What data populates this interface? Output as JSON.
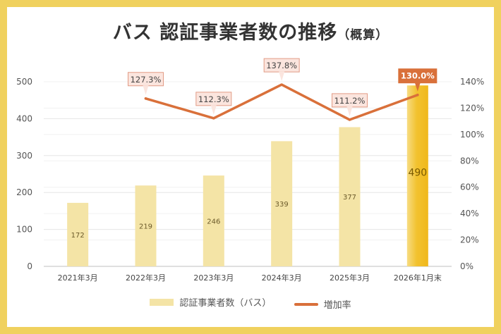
{
  "chart_data": {
    "type": "bar",
    "title": "バス  認証事業者数の推移",
    "title_note": "（概算）",
    "categories": [
      "2021年3月",
      "2022年3月",
      "2023年3月",
      "2024年3月",
      "2025年3月",
      "2026年1月末"
    ],
    "series": [
      {
        "name": "認証事業者数（バス）",
        "type": "bar",
        "axis": "left",
        "values": [
          172,
          219,
          246,
          339,
          377,
          490
        ],
        "labels": [
          "172",
          "219",
          "246",
          "339",
          "377",
          "490"
        ]
      },
      {
        "name": "増加率",
        "type": "line",
        "axis": "right",
        "values": [
          null,
          127.3,
          112.3,
          137.8,
          111.2,
          130.0
        ],
        "labels": [
          "",
          "127.3%",
          "112.3%",
          "137.8%",
          "111.2%",
          "130.0%"
        ]
      }
    ],
    "y_left": {
      "min": 0,
      "max": 500,
      "step": 100,
      "ticks": [
        "0",
        "100",
        "200",
        "300",
        "400",
        "500"
      ]
    },
    "y_right": {
      "min": 0,
      "max": 140,
      "step": 20,
      "ticks": [
        "0%",
        "20%",
        "40%",
        "60%",
        "80%",
        "100%",
        "120%",
        "140%"
      ]
    },
    "grid": true,
    "highlight_index": 5,
    "legend_position": "bottom"
  },
  "colors": {
    "bar": "#f4e4a6",
    "bar_highlight": "#f2c230",
    "bar_highlight_light": "#f7d978",
    "line": "#d9703a",
    "callout_fill": "#fbe5de",
    "callout_border": "#e29b85",
    "callout_highlight": "#d9703a",
    "frame": "#f0d15e"
  }
}
